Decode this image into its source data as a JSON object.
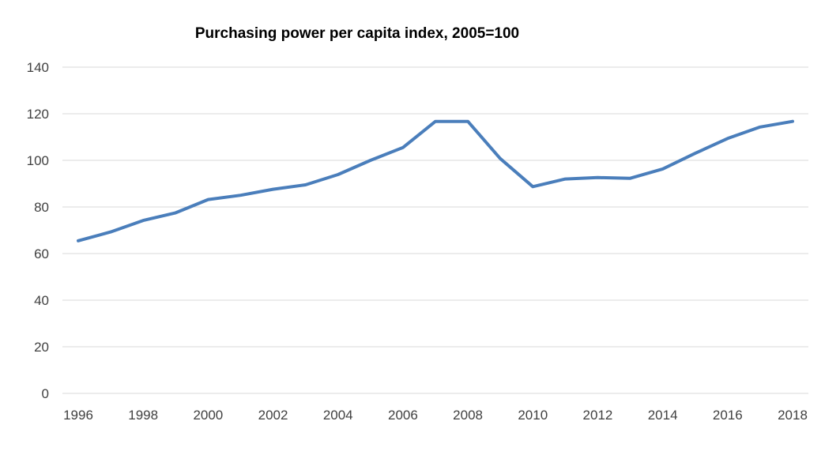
{
  "chart_data": {
    "type": "line",
    "title": "Purchasing power per capita index, 2005=100",
    "xlabel": "",
    "ylabel": "",
    "x": [
      1996,
      1997,
      1998,
      1999,
      2000,
      2001,
      2002,
      2003,
      2004,
      2005,
      2006,
      2007,
      2008,
      2009,
      2010,
      2011,
      2012,
      2013,
      2014,
      2015,
      2016,
      2017,
      2018
    ],
    "series": [
      {
        "values": [
          65.5,
          69.3,
          74.2,
          77.5,
          83.2,
          85.0,
          87.6,
          89.5,
          93.9,
          100.0,
          105.5,
          116.7,
          116.7,
          100.7,
          88.7,
          92.0,
          92.6,
          92.3,
          96.3,
          103.0,
          109.4,
          114.3,
          116.7
        ],
        "color": "#4a7ebb"
      }
    ],
    "xlim": [
      1996,
      2018
    ],
    "ylim": [
      0,
      140
    ],
    "x_ticks": [
      "1996",
      "1998",
      "2000",
      "2002",
      "2004",
      "2006",
      "2008",
      "2010",
      "2012",
      "2014",
      "2016",
      "2018"
    ],
    "y_ticks": [
      "0",
      "20",
      "40",
      "60",
      "80",
      "100",
      "120",
      "140"
    ],
    "grid": true,
    "legend": "none",
    "colors": {
      "line": "#4a7ebb",
      "gridline": "#d9d9d9",
      "axis": "#d9d9d9",
      "tick_text": "#404040"
    }
  }
}
